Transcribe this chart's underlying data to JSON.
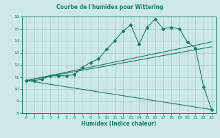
{
  "title": "Courbe de l'humidex pour Wittering",
  "xlabel": "Humidex (Indice chaleur)",
  "bg_color": "#cce8ea",
  "grid_color": "#aacccc",
  "line_color": "#1a7a6a",
  "xlim": [
    -0.5,
    23.5
  ],
  "ylim": [
    8,
    16
  ],
  "xticks": [
    0,
    1,
    2,
    3,
    4,
    5,
    6,
    7,
    8,
    9,
    10,
    11,
    12,
    13,
    14,
    15,
    16,
    17,
    18,
    19,
    20,
    21,
    22,
    23
  ],
  "yticks": [
    8,
    9,
    10,
    11,
    12,
    13,
    14,
    15,
    16
  ],
  "line1_x": [
    0,
    1,
    2,
    3,
    4,
    5,
    6,
    7,
    8,
    9,
    10,
    11,
    12,
    13,
    14,
    15,
    16,
    17,
    18,
    19,
    20,
    21,
    22,
    23
  ],
  "line1_y": [
    10.7,
    10.7,
    10.8,
    11.1,
    11.1,
    11.1,
    11.2,
    11.8,
    12.2,
    12.5,
    13.3,
    14.0,
    14.8,
    15.3,
    13.7,
    15.1,
    15.8,
    15.0,
    15.1,
    15.0,
    13.9,
    13.4,
    10.2,
    8.3
  ],
  "line2_x": [
    0,
    23
  ],
  "line2_y": [
    10.7,
    13.9
  ],
  "line3_x": [
    0,
    23
  ],
  "line3_y": [
    10.7,
    8.3
  ],
  "line4_x": [
    0,
    23
  ],
  "line4_y": [
    10.7,
    13.5
  ]
}
